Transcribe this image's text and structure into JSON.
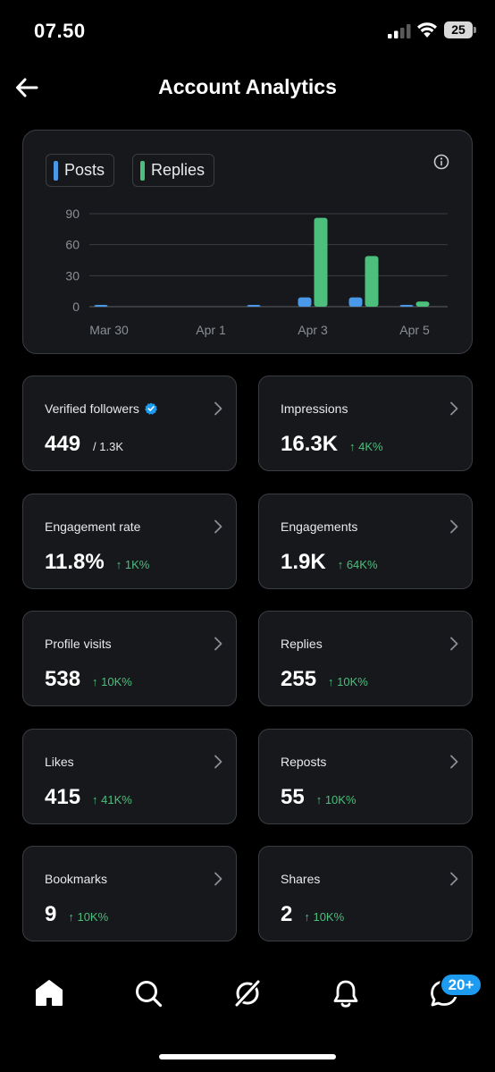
{
  "status_bar": {
    "time": "07.50",
    "battery": "25"
  },
  "header": {
    "title": "Account Analytics"
  },
  "chart_data": {
    "type": "bar",
    "legend": [
      {
        "name": "Posts",
        "color": "#4a99e9"
      },
      {
        "name": "Replies",
        "color": "#4bbf7b"
      }
    ],
    "x_tick_labels": [
      "Mar 30",
      "Apr 1",
      "Apr 3",
      "Apr 5"
    ],
    "y_tick_labels": [
      "90",
      "60",
      "30",
      "0"
    ],
    "ylim": [
      0,
      90
    ],
    "grid": true,
    "categories": [
      "Mar 30",
      "Mar 31",
      "Apr 1",
      "Apr 2",
      "Apr 3",
      "Apr 4",
      "Apr 5"
    ],
    "series": [
      {
        "name": "Posts",
        "color": "#4a99e9",
        "values": [
          1,
          0,
          0,
          1,
          9,
          9,
          1
        ]
      },
      {
        "name": "Replies",
        "color": "#4bbf7b",
        "values": [
          0,
          0,
          0,
          0,
          86,
          49,
          5
        ]
      }
    ]
  },
  "metrics": [
    {
      "label": "Verified followers",
      "value": "449",
      "sub": "/ 1.3K",
      "change": ""
    },
    {
      "label": "Impressions",
      "value": "16.3K",
      "sub": "",
      "change": "↑ 4K%"
    },
    {
      "label": "Engagement rate",
      "value": "11.8%",
      "sub": "",
      "change": "↑ 1K%"
    },
    {
      "label": "Engagements",
      "value": "1.9K",
      "sub": "",
      "change": "↑ 64K%"
    },
    {
      "label": "Profile visits",
      "value": "538",
      "sub": "",
      "change": "↑ 10K%"
    },
    {
      "label": "Replies",
      "value": "255",
      "sub": "",
      "change": "↑ 10K%"
    },
    {
      "label": "Likes",
      "value": "415",
      "sub": "",
      "change": "↑ 41K%"
    },
    {
      "label": "Reposts",
      "value": "55",
      "sub": "",
      "change": "↑ 10K%"
    },
    {
      "label": "Bookmarks",
      "value": "9",
      "sub": "",
      "change": "↑ 10K%"
    },
    {
      "label": "Shares",
      "value": "2",
      "sub": "",
      "change": "↑ 10K%"
    }
  ],
  "tab_bar": {
    "tabs": [
      "home-icon",
      "search-icon",
      "grok-icon",
      "bell-icon",
      "messages-icon"
    ],
    "messages_badge": "20+"
  },
  "colors": {
    "accent": "#1d9bf0",
    "positive": "#4bbf7b",
    "card_bg": "#16181c",
    "card_border": "#3a3d42"
  }
}
